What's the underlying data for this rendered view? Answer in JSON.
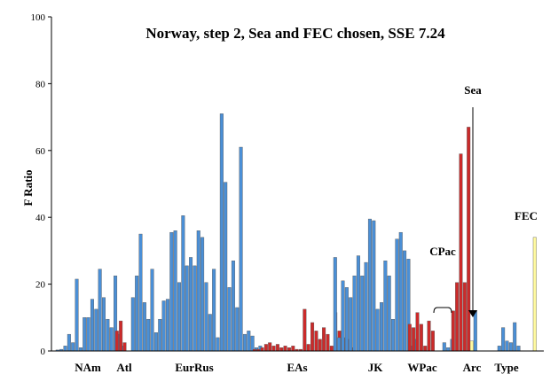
{
  "chart_data": {
    "type": "bar",
    "title": "Norway, step 2, Sea and FEC chosen, SSE 7.24",
    "xlabel": "",
    "ylabel": "F Ratio",
    "ylim": [
      0,
      100
    ],
    "yticks": [
      "0",
      "20",
      "40",
      "60",
      "80",
      "100"
    ],
    "grid": false,
    "legend": "none",
    "colors": {
      "blue": "#4a8fd6",
      "red": "#cc2a2a",
      "yellow": "#fffaa0",
      "outline": "#555555"
    },
    "groups": [
      {
        "label": "NAm",
        "color": "blue",
        "values": [
          0.3,
          0.5,
          1.5,
          5,
          2.5,
          21.5,
          1,
          10,
          10,
          15.5,
          12.5,
          24.5,
          16,
          9.5,
          7,
          22.5,
          5,
          1.5
        ]
      },
      {
        "label": "Atl",
        "color": "red",
        "values": [
          6,
          9,
          2.5
        ]
      },
      {
        "label": "EurRus",
        "color": "blue",
        "values": [
          16,
          22.5,
          35,
          14.5,
          9.5,
          24.5,
          5.5,
          9.5,
          15,
          15.5,
          35.5,
          36,
          20.5,
          40.5,
          25.5,
          28,
          25.5,
          36,
          34,
          20.5,
          11,
          24.5,
          4,
          71,
          50.5,
          19,
          27,
          13,
          61,
          5,
          6,
          4.5,
          1,
          1.5
        ]
      },
      {
        "label": "EAs",
        "color": "red",
        "values": [
          0.5,
          0.5,
          1,
          2,
          2.5,
          1.5,
          2,
          1,
          1.5,
          1,
          1.5,
          0.5,
          0.5,
          12.5,
          2,
          8.5,
          6,
          3.5,
          7,
          5,
          1.5,
          11.5,
          6,
          4,
          3.5,
          1
        ]
      },
      {
        "label": "JK",
        "color": "blue",
        "values": [
          28,
          4,
          21,
          19,
          16,
          22.5,
          28.5,
          22.5,
          26.5,
          39.5,
          39,
          12.5,
          14.5,
          27,
          22.5,
          9.5,
          33.5,
          35.5,
          30,
          27.5,
          1.5,
          3.5
        ]
      },
      {
        "label": "WPac",
        "color": "red",
        "values": [
          8,
          7,
          11.5,
          8,
          1.5,
          9,
          6
        ]
      },
      {
        "label": "CPac",
        "color": "blue",
        "values": [
          2.5,
          1,
          3.5
        ]
      },
      {
        "label": "Arc",
        "color": "red",
        "values": [
          12,
          20.5,
          59,
          20.5,
          67
        ]
      },
      {
        "label": "Sea",
        "color": "blue",
        "values": [
          12
        ]
      },
      {
        "label": "",
        "color": "yellow",
        "values": [
          3
        ]
      },
      {
        "label": "Type",
        "color": "blue",
        "values": [
          1.5,
          7,
          3,
          2.5,
          8.5,
          1.5
        ]
      },
      {
        "label": "FEC",
        "color": "yellow",
        "values": [
          34
        ]
      }
    ],
    "annotations": [
      "CPac",
      "Sea",
      "FEC"
    ]
  }
}
